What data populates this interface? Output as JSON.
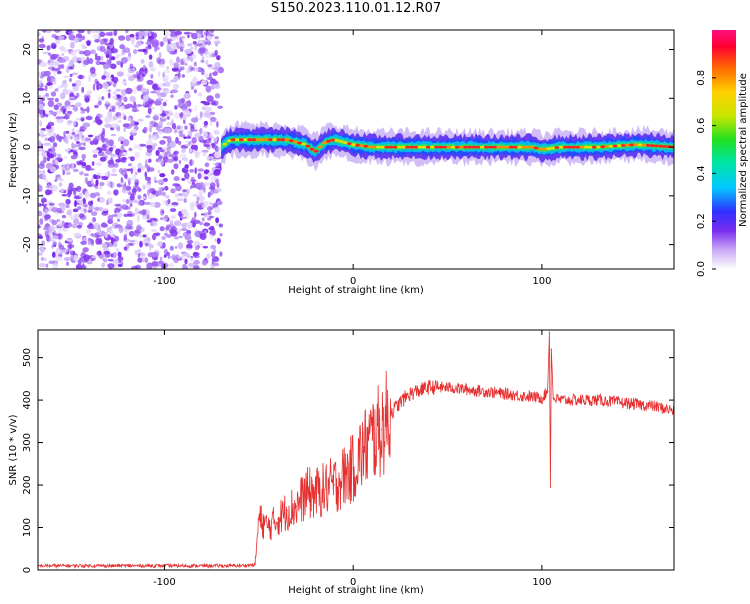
{
  "figure_title": "S150.2023.110.01.12.R07",
  "colors": {
    "snr_line": "#e53030",
    "spectrogram_noise": "#8a3ff0",
    "spectrogram_ridge": "#ff2020",
    "axis": "#000000"
  },
  "chart_data": [
    {
      "type": "heatmap",
      "title": "",
      "xlabel": "Height of straight line (km)",
      "ylabel": "Frequency (Hz)",
      "xlim": [
        -167,
        170
      ],
      "ylim": [
        -25,
        24
      ],
      "xticks": [
        -100,
        0,
        100
      ],
      "yticks": [
        -20,
        -10,
        0,
        10,
        20
      ],
      "grid": false,
      "colorbar": {
        "label": "Normalized spectral amplitude",
        "range": [
          0,
          1
        ],
        "ticks": [
          0.0,
          0.2,
          0.4,
          0.6,
          0.8
        ],
        "tick_labels": [
          "0.0",
          "0.2",
          "0.4",
          "0.6",
          "0.8"
        ]
      },
      "noise_region_x": [
        -167,
        -70
      ],
      "signal_ridge": {
        "x": [
          -70,
          -65,
          -55,
          -45,
          -35,
          -25,
          -20,
          -15,
          -10,
          0,
          10,
          20,
          40,
          60,
          80,
          95,
          100,
          110,
          130,
          150,
          170
        ],
        "y": [
          0,
          1.5,
          1.5,
          1.5,
          1.5,
          0.5,
          -1,
          1,
          1.5,
          0.5,
          0,
          0,
          0,
          0,
          0,
          0,
          -0.5,
          0,
          0,
          0.5,
          0
        ]
      }
    },
    {
      "type": "line",
      "title": "",
      "xlabel": "Height of straight line (km)",
      "ylabel": "SNR (10 * v/v)",
      "xlim": [
        -167,
        170
      ],
      "ylim": [
        0,
        565
      ],
      "xticks": [
        -100,
        0,
        100
      ],
      "yticks": [
        0,
        100,
        200,
        300,
        400,
        500
      ],
      "grid": false,
      "series": [
        {
          "x": [
            -167,
            -140,
            -110,
            -80,
            -60,
            -52,
            -50,
            -45,
            -40,
            -35,
            -30,
            -25,
            -20,
            -15,
            -10,
            -5,
            0,
            5,
            10,
            15,
            20,
            25,
            30,
            40,
            50,
            60,
            70,
            80,
            90,
            100,
            103,
            104,
            104.5,
            105,
            106,
            110,
            120,
            130,
            140,
            150,
            160,
            170
          ],
          "y": [
            10,
            10,
            10,
            10,
            10,
            12,
            120,
            100,
            120,
            140,
            150,
            180,
            180,
            190,
            200,
            220,
            240,
            280,
            310,
            330,
            370,
            395,
            415,
            430,
            430,
            425,
            420,
            415,
            410,
            405,
            420,
            560,
            195,
            520,
            405,
            400,
            400,
            400,
            395,
            390,
            385,
            375
          ]
        }
      ]
    }
  ]
}
